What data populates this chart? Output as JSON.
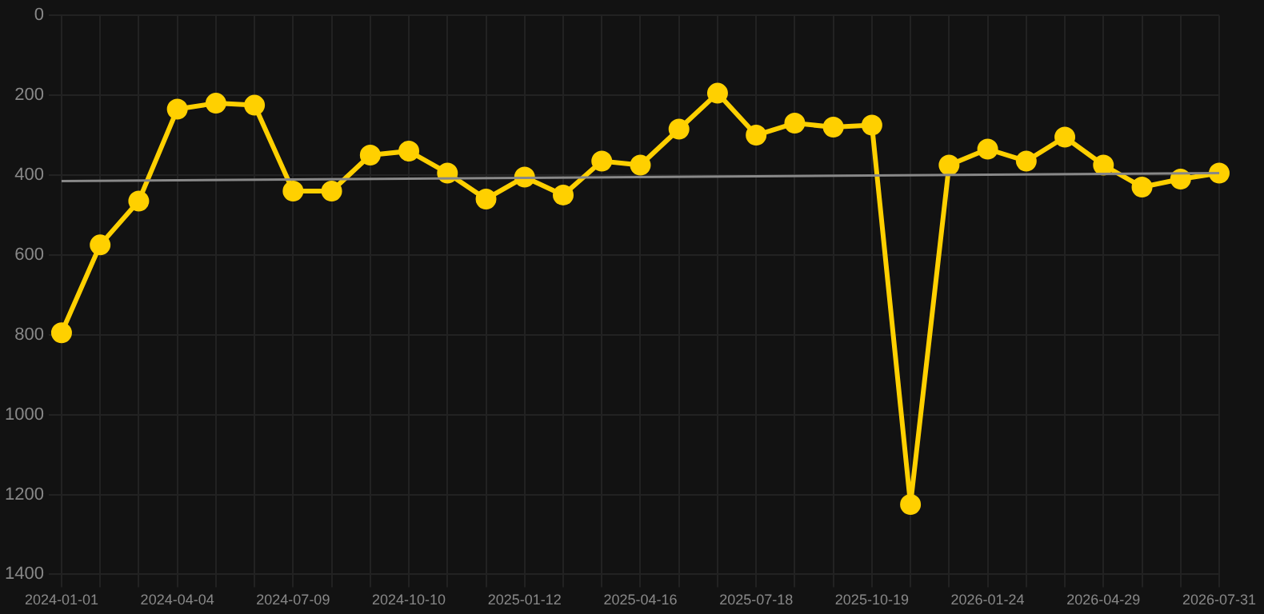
{
  "chart_data": {
    "type": "line",
    "categories": [
      "2024-01-01",
      null,
      null,
      "2024-04-04",
      null,
      null,
      "2024-07-09",
      null,
      null,
      "2024-10-10",
      null,
      null,
      "2025-01-12",
      null,
      null,
      "2025-04-16",
      null,
      null,
      "2025-07-18",
      null,
      null,
      "2025-10-19",
      null,
      null,
      "2026-01-24",
      null,
      null,
      "2026-04-29",
      null,
      null,
      "2026-07-31"
    ],
    "series": [
      {
        "color": "#ffd000",
        "marker": "circle",
        "values": [
          795,
          575,
          465,
          235,
          220,
          225,
          440,
          440,
          350,
          340,
          395,
          460,
          405,
          450,
          365,
          375,
          285,
          195,
          300,
          270,
          280,
          275,
          1225,
          375,
          335,
          365,
          305,
          375,
          430,
          410,
          395
        ]
      },
      {
        "type": "line",
        "color": "#888888",
        "marker": "none",
        "values": [
          415,
          null,
          null,
          null,
          null,
          null,
          null,
          null,
          null,
          null,
          null,
          null,
          null,
          null,
          null,
          null,
          null,
          null,
          null,
          null,
          null,
          null,
          null,
          null,
          null,
          null,
          null,
          null,
          null,
          null,
          395
        ]
      }
    ],
    "ylim": [
      1400,
      0
    ],
    "yticks": [
      0,
      200,
      400,
      600,
      800,
      1000,
      1200,
      1400
    ],
    "grid": true,
    "legend": false
  }
}
